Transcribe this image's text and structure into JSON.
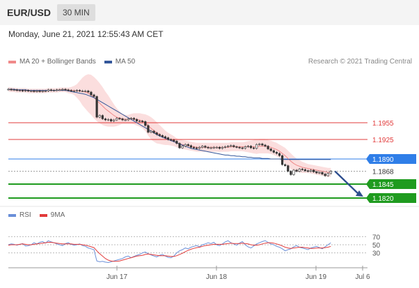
{
  "header": {
    "symbol": "EUR/USD",
    "timeframe": "30 MIN",
    "datetime": "Monday, June 21, 2021 12:55:43 AM CET",
    "copyright": "Research © 2021 Trading Central"
  },
  "colors": {
    "bollinger": "#f08a8a",
    "ma50": "#34579a",
    "resistance": "#e23b3b",
    "pivot": "#2f7ee8",
    "support": "#1f9b1f",
    "rsi": "#6a8fd8",
    "rsi_ma": "#e23b3b"
  },
  "chart_data": [
    {
      "type": "candlestick",
      "legend": [
        {
          "name": "MA 20 + Bollinger Bands",
          "color": "#f08a8a"
        },
        {
          "name": "MA 50",
          "color": "#34579a"
        }
      ],
      "x_ticks": [
        "Jun 17",
        "Jun 18",
        "Jun 19",
        "Jul 6"
      ],
      "ylim": [
        1.18,
        1.205
      ],
      "levels": [
        {
          "label": "1.1955",
          "value": 1.1955,
          "kind": "resistance"
        },
        {
          "label": "1.1925",
          "value": 1.1925,
          "kind": "resistance"
        },
        {
          "label": "1.1890",
          "value": 1.189,
          "kind": "pivot"
        },
        {
          "label": "1.1868",
          "value": 1.1868,
          "kind": "last"
        },
        {
          "label": "1.1845",
          "value": 1.1845,
          "kind": "support"
        },
        {
          "label": "1.1820",
          "value": 1.182,
          "kind": "support"
        }
      ],
      "close": [
        1.2015,
        1.2014,
        1.2014,
        1.2013,
        1.2013,
        1.2012,
        1.2013,
        1.2012,
        1.2012,
        1.2011,
        1.2012,
        1.2011,
        1.2012,
        1.2012,
        1.2014,
        1.2013,
        1.2013,
        1.2014,
        1.2014,
        1.2015,
        1.2014,
        1.2013,
        1.2012,
        1.2012,
        1.2013,
        1.2012,
        1.2012,
        1.2012,
        1.201,
        1.2005,
        1.2002,
        1.1965,
        1.1968,
        1.1962,
        1.196,
        1.1961,
        1.1958,
        1.196,
        1.1963,
        1.1962,
        1.196,
        1.196,
        1.1962,
        1.1963,
        1.1961,
        1.1958,
        1.1958,
        1.1957,
        1.195,
        1.1938,
        1.194,
        1.1937,
        1.1934,
        1.1932,
        1.193,
        1.1928,
        1.1925,
        1.1924,
        1.1922,
        1.1918,
        1.191,
        1.1913,
        1.1916,
        1.1914,
        1.1911,
        1.191,
        1.1909,
        1.1911,
        1.1913,
        1.1911,
        1.191,
        1.191,
        1.1911,
        1.1911,
        1.1909,
        1.1911,
        1.1912,
        1.1913,
        1.1914,
        1.1912,
        1.1911,
        1.191,
        1.1909,
        1.1912,
        1.1913,
        1.191,
        1.1909,
        1.1916,
        1.1917,
        1.1915,
        1.1913,
        1.1908,
        1.1905,
        1.1902,
        1.19,
        1.1896,
        1.188,
        1.1878,
        1.1868,
        1.1862,
        1.187,
        1.1868,
        1.1872,
        1.1871,
        1.1869,
        1.1868,
        1.187,
        1.1867,
        1.1865,
        1.1866,
        1.1863,
        1.186,
        1.1864,
        1.1868
      ],
      "ma20": [
        1.2015,
        1.2014,
        1.2014,
        1.2013,
        1.2013,
        1.2013,
        1.2013,
        1.2012,
        1.2012,
        1.2012,
        1.2012,
        1.2012,
        1.2012,
        1.2012,
        1.2013,
        1.2013,
        1.2013,
        1.2013,
        1.2014,
        1.2014,
        1.2014,
        1.2013,
        1.2013,
        1.2013,
        1.2012,
        1.2012,
        1.2011,
        1.201,
        1.2008,
        1.2005,
        1.2,
        1.1995,
        1.199,
        1.1985,
        1.198,
        1.1976,
        1.1972,
        1.1968,
        1.1965,
        1.1963,
        1.1962,
        1.1961,
        1.1961,
        1.1962,
        1.1962,
        1.1961,
        1.196,
        1.1958,
        1.1955,
        1.195,
        1.1945,
        1.1941,
        1.1937,
        1.1934,
        1.1931,
        1.1928,
        1.1926,
        1.1924,
        1.1922,
        1.1919,
        1.1917,
        1.1916,
        1.1915,
        1.1914,
        1.1913,
        1.1912,
        1.1911,
        1.1911,
        1.1911,
        1.1911,
        1.1911,
        1.1911,
        1.1911,
        1.1911,
        1.1911,
        1.1911,
        1.1911,
        1.1911,
        1.1912,
        1.1912,
        1.1912,
        1.1912,
        1.1912,
        1.1912,
        1.1912,
        1.1912,
        1.1912,
        1.1912,
        1.1913,
        1.1913,
        1.1913,
        1.1912,
        1.1911,
        1.1909,
        1.1907,
        1.1904,
        1.19,
        1.1896,
        1.1891,
        1.1886,
        1.1882,
        1.1879,
        1.1877,
        1.1875,
        1.1874,
        1.1873,
        1.1872,
        1.1871,
        1.187,
        1.1869,
        1.1868,
        1.1867,
        1.1866,
        1.1866
      ],
      "ma50": [
        1.2015,
        1.2015,
        1.2015,
        1.2014,
        1.2014,
        1.2014,
        1.2014,
        1.2013,
        1.2013,
        1.2013,
        1.2013,
        1.2013,
        1.2013,
        1.2013,
        1.2013,
        1.2013,
        1.2013,
        1.2013,
        1.2013,
        1.2013,
        1.2013,
        1.2012,
        1.2011,
        1.201,
        1.2009,
        1.2008,
        1.2007,
        1.2006,
        1.2004,
        1.2002,
        1.2,
        1.1997,
        1.1994,
        1.1991,
        1.1988,
        1.1985,
        1.1982,
        1.1979,
        1.1976,
        1.1973,
        1.197,
        1.1967,
        1.1964,
        1.1961,
        1.1958,
        1.1955,
        1.1952,
        1.1949,
        1.1946,
        1.1943,
        1.194,
        1.1937,
        1.1934,
        1.1931,
        1.1929,
        1.1927,
        1.1925,
        1.1923,
        1.1921,
        1.1919,
        1.1917,
        1.1915,
        1.1913,
        1.1911,
        1.1909,
        1.1908,
        1.1907,
        1.1906,
        1.1905,
        1.1904,
        1.1903,
        1.1902,
        1.1901,
        1.19,
        1.1899,
        1.1898,
        1.1897,
        1.1897,
        1.1896,
        1.1896,
        1.1895,
        1.1895,
        1.1894,
        1.1894,
        1.1893,
        1.1893,
        1.1892,
        1.1892,
        1.1892,
        1.1891,
        1.1891,
        1.1891,
        1.189,
        1.189,
        1.189,
        1.189,
        1.1889,
        1.1889,
        1.1889,
        1.1889,
        1.1889,
        1.1889,
        1.1889,
        1.1889,
        1.1889,
        1.1889,
        1.1889,
        1.1889,
        1.1889,
        1.1889,
        1.1889,
        1.1889,
        1.1889,
        1.1889
      ],
      "bb_width": [
        0.0004,
        0.0004,
        0.0004,
        0.0004,
        0.0004,
        0.0004,
        0.0004,
        0.0004,
        0.0004,
        0.0004,
        0.0004,
        0.0004,
        0.0004,
        0.0004,
        0.0004,
        0.0004,
        0.0004,
        0.0004,
        0.0004,
        0.0004,
        0.0004,
        0.0005,
        0.0006,
        0.0008,
        0.0012,
        0.0018,
        0.0025,
        0.003,
        0.0034,
        0.0036,
        0.0037,
        0.0037,
        0.0036,
        0.0034,
        0.0031,
        0.0028,
        0.0024,
        0.002,
        0.0016,
        0.0012,
        0.0009,
        0.0008,
        0.0008,
        0.0009,
        0.001,
        0.0011,
        0.0012,
        0.0013,
        0.0015,
        0.0018,
        0.002,
        0.002,
        0.0019,
        0.0017,
        0.0015,
        0.0013,
        0.0011,
        0.001,
        0.0009,
        0.0008,
        0.0008,
        0.0008,
        0.0008,
        0.0008,
        0.0008,
        0.0008,
        0.0008,
        0.0008,
        0.0008,
        0.0008,
        0.0008,
        0.0008,
        0.0008,
        0.0008,
        0.0008,
        0.0008,
        0.0008,
        0.0008,
        0.0008,
        0.0008,
        0.0008,
        0.0008,
        0.0008,
        0.0009,
        0.001,
        0.0011,
        0.0012,
        0.0013,
        0.0013,
        0.0013,
        0.0013,
        0.0012,
        0.0012,
        0.0012,
        0.0012,
        0.0012,
        0.0013,
        0.0014,
        0.0014,
        0.0014,
        0.0013,
        0.0012,
        0.0011,
        0.001,
        0.0009,
        0.0008,
        0.0008,
        0.0008,
        0.0008,
        0.0008,
        0.0008,
        0.0008,
        0.0008,
        0.0008
      ],
      "projection": {
        "from": 1.1868,
        "to": 1.182
      }
    },
    {
      "type": "line",
      "legend": [
        {
          "name": "RSI",
          "color": "#6a8fd8"
        },
        {
          "name": "9MA",
          "color": "#e23b3b"
        }
      ],
      "ylim": [
        0,
        100
      ],
      "levels": [
        70,
        50,
        30
      ],
      "rsi": [
        50,
        52,
        51,
        49,
        51,
        53,
        47,
        48,
        50,
        55,
        52,
        56,
        58,
        54,
        60,
        57,
        55,
        52,
        50,
        48,
        53,
        55,
        51,
        49,
        50,
        52,
        48,
        46,
        42,
        40,
        38,
        10,
        8,
        9,
        7,
        6,
        8,
        10,
        12,
        14,
        16,
        20,
        22,
        18,
        21,
        24,
        26,
        30,
        32,
        28,
        25,
        22,
        20,
        24,
        26,
        22,
        19,
        18,
        22,
        30,
        35,
        38,
        42,
        40,
        44,
        46,
        48,
        45,
        50,
        52,
        55,
        53,
        56,
        50,
        48,
        52,
        57,
        60,
        55,
        52,
        49,
        54,
        58,
        50,
        45,
        42,
        47,
        52,
        55,
        58,
        60,
        56,
        52,
        50,
        46,
        44,
        40,
        35,
        38,
        40,
        45,
        48,
        44,
        42,
        40,
        38,
        42,
        44,
        46,
        43,
        40,
        45,
        50,
        55
      ],
      "rsi_ma": [
        49,
        50,
        50,
        50,
        51,
        52,
        51,
        50,
        50,
        51,
        52,
        53,
        54,
        55,
        56,
        56,
        55,
        54,
        53,
        52,
        52,
        52,
        52,
        51,
        51,
        51,
        50,
        49,
        47,
        45,
        43,
        35,
        28,
        22,
        16,
        12,
        10,
        9,
        9,
        10,
        12,
        14,
        16,
        18,
        20,
        22,
        23,
        24,
        26,
        27,
        26,
        25,
        24,
        23,
        23,
        23,
        22,
        21,
        21,
        23,
        26,
        29,
        33,
        36,
        39,
        41,
        43,
        44,
        46,
        48,
        49,
        50,
        51,
        51,
        51,
        51,
        52,
        53,
        54,
        53,
        53,
        53,
        54,
        53,
        52,
        50,
        49,
        49,
        50,
        52,
        54,
        55,
        55,
        54,
        52,
        50,
        47,
        44,
        42,
        41,
        42,
        43,
        44,
        44,
        43,
        42,
        41,
        41,
        42,
        42,
        42,
        43,
        44,
        46
      ]
    }
  ]
}
